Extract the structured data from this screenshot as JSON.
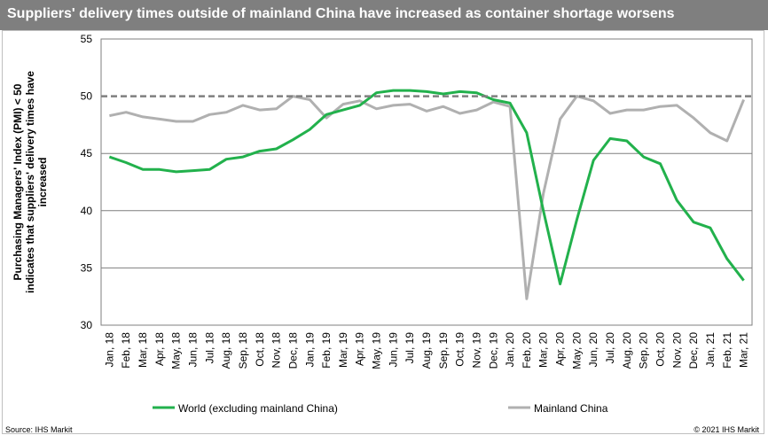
{
  "title": "Suppliers' delivery times outside of mainland China have increased as container shortage worsens",
  "footer": {
    "source": "Source:  IHS Markit",
    "copyright": "© 2021  IHS Markit"
  },
  "colors": {
    "title_bg": "#7f7f7f",
    "world": "#22b14c",
    "china": "#b0b0b0",
    "reference": "#7f7f7f",
    "grid": "#7f7f7f"
  },
  "chart_data": {
    "type": "line",
    "ylabel_lines": [
      "Purchasing Managers' Index (PMI) < 50",
      "indicates that suppliers' delivery times have",
      "increased"
    ],
    "ylim": [
      30,
      55
    ],
    "yticks": [
      30,
      35,
      40,
      45,
      50,
      55
    ],
    "reference_line": 50,
    "legend_position": "bottom",
    "categories": [
      "Jan, 18",
      "Feb, 18",
      "Mar, 18",
      "Apr, 18",
      "May, 18",
      "Jun, 18",
      "Jul, 18",
      "Aug, 18",
      "Sep, 18",
      "Oct, 18",
      "Nov, 18",
      "Dec, 18",
      "Jan, 19",
      "Feb, 19",
      "Mar, 19",
      "Apr, 19",
      "May, 19",
      "Jun, 19",
      "Jul, 19",
      "Aug, 19",
      "Sep, 19",
      "Oct, 19",
      "Nov, 19",
      "Dec, 19",
      "Jan, 20",
      "Feb, 20",
      "Mar, 20",
      "Apr, 20",
      "May, 20",
      "Jun, 20",
      "Jul, 20",
      "Aug, 20",
      "Sep, 20",
      "Oct, 20",
      "Nov, 20",
      "Dec, 20",
      "Jan, 21",
      "Feb, 21",
      "Mar, 21"
    ],
    "series": [
      {
        "name": "World (excluding mainland China)",
        "color": "#22b14c",
        "values": [
          44.7,
          44.2,
          43.6,
          43.6,
          43.4,
          43.5,
          43.6,
          44.5,
          44.7,
          45.2,
          45.4,
          46.2,
          47.1,
          48.4,
          48.8,
          49.2,
          50.3,
          50.5,
          50.5,
          50.4,
          50.2,
          50.4,
          50.3,
          49.7,
          49.4,
          46.8,
          40.0,
          33.6,
          39.2,
          44.4,
          46.3,
          46.1,
          44.7,
          44.1,
          40.9,
          39.0,
          38.5,
          35.8,
          33.9
        ]
      },
      {
        "name": "Mainland China",
        "color": "#b0b0b0",
        "values": [
          48.3,
          48.6,
          48.2,
          48.0,
          47.8,
          47.8,
          48.4,
          48.6,
          49.2,
          48.8,
          48.9,
          50.0,
          49.7,
          48.1,
          49.3,
          49.6,
          48.9,
          49.2,
          49.3,
          48.7,
          49.1,
          48.5,
          48.8,
          49.5,
          49.1,
          32.3,
          41.5,
          48.0,
          50.0,
          49.6,
          48.5,
          48.8,
          48.8,
          49.1,
          49.2,
          48.1,
          46.8,
          46.1,
          49.7
        ]
      }
    ]
  }
}
